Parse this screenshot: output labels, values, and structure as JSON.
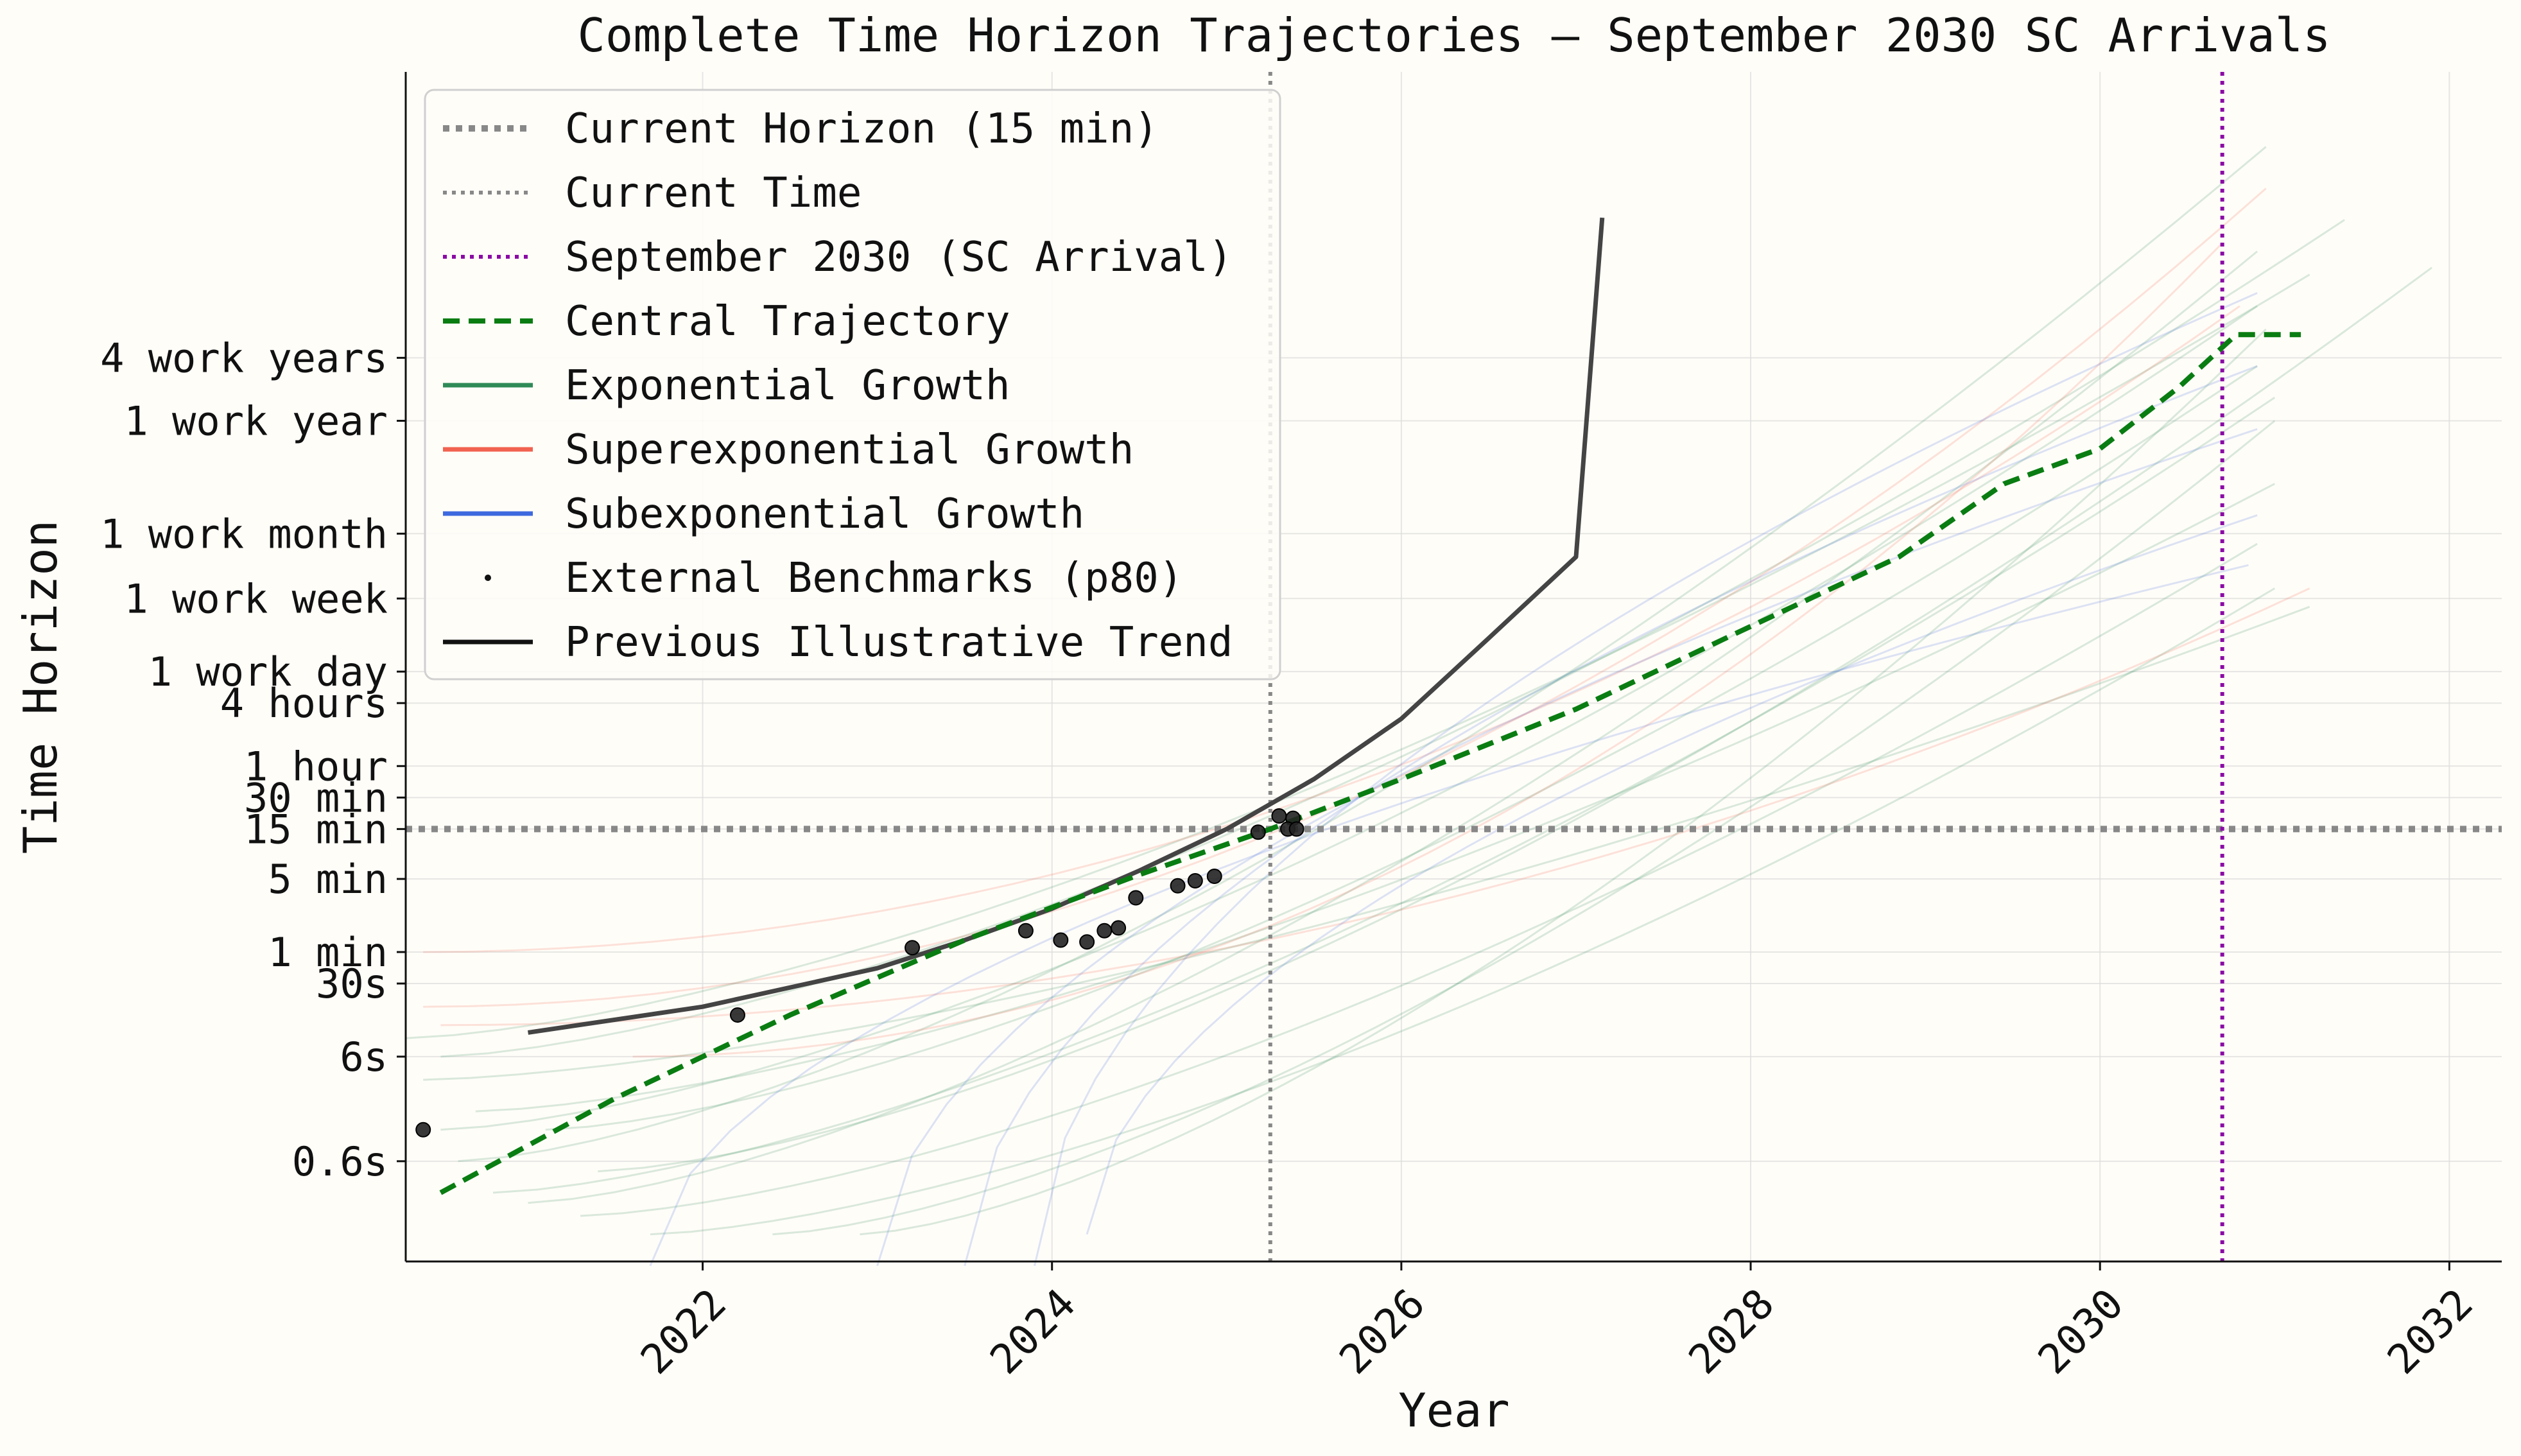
{
  "chart_data": {
    "type": "line",
    "title": "Complete Time Horizon Trajectories — September 2030 SC Arrivals",
    "xlabel": "Year",
    "ylabel": "Time Horizon",
    "xlim": [
      2020.3,
      2032.3
    ],
    "xscale": "linear",
    "yscale": "log",
    "y_units": "minutes",
    "ylim": [
      0.0011,
      260000000.0
    ],
    "xticks": [
      2022,
      2024,
      2026,
      2028,
      2030,
      2032
    ],
    "yticks": [
      {
        "label": "0.6s",
        "value": 0.01
      },
      {
        "label": "6s",
        "value": 0.1
      },
      {
        "label": "30s",
        "value": 0.5
      },
      {
        "label": "1 min",
        "value": 1
      },
      {
        "label": "5 min",
        "value": 5
      },
      {
        "label": "15 min",
        "value": 15
      },
      {
        "label": "30 min",
        "value": 30
      },
      {
        "label": "1 hour",
        "value": 60
      },
      {
        "label": "4 hours",
        "value": 240
      },
      {
        "label": "1 work day",
        "value": 480
      },
      {
        "label": "1 work week",
        "value": 2400
      },
      {
        "label": "1 work month",
        "value": 10000
      },
      {
        "label": "1 work year",
        "value": 120000
      },
      {
        "label": "4 work years",
        "value": 480000
      }
    ],
    "grid": true,
    "legend_position": "upper-left",
    "reference_lines": {
      "current_horizon_min": 15,
      "current_time": 2025.25,
      "sc_arrival": 2030.7
    },
    "colors": {
      "central": "#0a7d12",
      "exponential": "#2e8b57",
      "superexponential": "#f16250",
      "subexponential": "#3e6ae0",
      "previous_trend": "#444444",
      "benchmark": "#222222",
      "reference_gray": "#888888",
      "sc_purple": "#8b0aa5",
      "background": "#fffdf8"
    },
    "legend": [
      {
        "label": "Current Horizon (15 min)",
        "key": "current_horizon",
        "style": "thick-dotted",
        "color": "#888888"
      },
      {
        "label": "Current Time",
        "key": "current_time",
        "style": "dotted",
        "color": "#888888"
      },
      {
        "label": "September 2030 (SC Arrival)",
        "key": "sc_arrival",
        "style": "dotted",
        "color": "#8b0aa5"
      },
      {
        "label": "Central Trajectory",
        "key": "central",
        "style": "dashed",
        "color": "#0a7d12"
      },
      {
        "label": "Exponential Growth",
        "key": "exponential",
        "style": "solid",
        "color": "#2e8b57"
      },
      {
        "label": "Superexponential Growth",
        "key": "superexponential",
        "style": "solid",
        "color": "#f16250"
      },
      {
        "label": "Subexponential Growth",
        "key": "subexponential",
        "style": "solid",
        "color": "#3e6ae0"
      },
      {
        "label": "External Benchmarks (p80)",
        "key": "benchmarks",
        "style": "dot",
        "color": "#111111"
      },
      {
        "label": "Previous Illustrative Trend",
        "key": "previous_trend",
        "style": "solid",
        "color": "#111111"
      }
    ],
    "series": [
      {
        "name": "Central Trajectory",
        "points": [
          [
            2020.5,
            0.005
          ],
          [
            2021.5,
            0.04
          ],
          [
            2022.5,
            0.25
          ],
          [
            2023.5,
            1.3
          ],
          [
            2024.5,
            5.5
          ],
          [
            2025.25,
            15
          ],
          [
            2026,
            45
          ],
          [
            2027,
            210
          ],
          [
            2028,
            1300
          ],
          [
            2028.85,
            6000
          ],
          [
            2029.45,
            30000
          ],
          [
            2030,
            65000
          ],
          [
            2030.45,
            250000
          ],
          [
            2030.78,
            800000
          ],
          [
            2031.15,
            800000
          ]
        ]
      },
      {
        "name": "Previous Illustrative Trend",
        "points": [
          [
            2021.0,
            0.17
          ],
          [
            2022,
            0.3
          ],
          [
            2023,
            0.7
          ],
          [
            2023.5,
            1.3
          ],
          [
            2024,
            2.6
          ],
          [
            2024.5,
            6
          ],
          [
            2025,
            15
          ],
          [
            2025.5,
            45
          ],
          [
            2026,
            170
          ],
          [
            2026.5,
            1000
          ],
          [
            2027,
            6000
          ],
          [
            2027.15,
            10500000
          ]
        ]
      }
    ],
    "benchmarks": [
      [
        2020.4,
        0.02
      ],
      [
        2022.2,
        0.25
      ],
      [
        2023.2,
        1.1
      ],
      [
        2023.85,
        1.6
      ],
      [
        2024.05,
        1.3
      ],
      [
        2024.2,
        1.25
      ],
      [
        2024.3,
        1.6
      ],
      [
        2024.38,
        1.7
      ],
      [
        2024.48,
        3.3
      ],
      [
        2024.72,
        4.3
      ],
      [
        2024.82,
        4.8
      ],
      [
        2024.93,
        5.3
      ],
      [
        2025.18,
        14
      ],
      [
        2025.3,
        20
      ],
      [
        2025.38,
        19
      ],
      [
        2025.35,
        15
      ],
      [
        2025.4,
        15
      ]
    ],
    "trajectories": [
      {
        "type": "exponential",
        "start": [
          2020.3,
          0.15
        ],
        "end": [
          2031.2,
          3000000
        ]
      },
      {
        "type": "exponential",
        "start": [
          2020.5,
          0.02
        ],
        "end": [
          2030.9,
          1500000
        ]
      },
      {
        "type": "exponential",
        "start": [
          2020.6,
          0.01
        ],
        "end": [
          2030.95,
          50000000
        ]
      },
      {
        "type": "exponential",
        "start": [
          2020.8,
          0.005
        ],
        "end": [
          2031.0,
          200000
        ]
      },
      {
        "type": "exponential",
        "start": [
          2021.0,
          0.004
        ],
        "end": [
          2030.9,
          5000000
        ]
      },
      {
        "type": "exponential",
        "start": [
          2021.3,
          0.003
        ],
        "end": [
          2030.9,
          8000
        ]
      },
      {
        "type": "exponential",
        "start": [
          2021.7,
          0.002
        ],
        "end": [
          2031.0,
          3000
        ]
      },
      {
        "type": "exponential",
        "start": [
          2022.4,
          0.002
        ],
        "end": [
          2031.0,
          120000
        ]
      },
      {
        "type": "exponential",
        "start": [
          2022.9,
          0.002
        ],
        "end": [
          2030.95,
          900000
        ]
      },
      {
        "type": "exponential",
        "start": [
          2020.4,
          0.06
        ],
        "end": [
          2031.2,
          2000
        ]
      },
      {
        "type": "exponential",
        "start": [
          2020.7,
          0.03
        ],
        "end": [
          2031.0,
          30000
        ]
      },
      {
        "type": "exponential",
        "start": [
          2021.4,
          0.008
        ],
        "end": [
          2031.9,
          3500000
        ]
      },
      {
        "type": "exponential",
        "start": [
          2020.5,
          0.1
        ],
        "end": [
          2031.4,
          10000000
        ]
      },
      {
        "type": "exponential",
        "start": [
          2021.1,
          0.02
        ],
        "end": [
          2030.9,
          400000
        ]
      },
      {
        "type": "superexponential",
        "start": [
          2020.4,
          1.0
        ],
        "end": [
          2030.8,
          1500000
        ]
      },
      {
        "type": "superexponential",
        "start": [
          2020.4,
          0.3
        ],
        "end": [
          2030.95,
          20000000
        ]
      },
      {
        "type": "superexponential",
        "start": [
          2020.5,
          0.2
        ],
        "end": [
          2031.2,
          3000
        ]
      },
      {
        "type": "superexponential",
        "start": [
          2021.6,
          0.1
        ],
        "end": [
          2030.7,
          6000000
        ]
      },
      {
        "type": "subexponential",
        "start": [
          2023.0,
          0.001
        ],
        "end": [
          2030.9,
          100000
        ]
      },
      {
        "type": "subexponential",
        "start": [
          2023.5,
          0.001
        ],
        "end": [
          2030.9,
          400000
        ]
      },
      {
        "type": "subexponential",
        "start": [
          2023.9,
          0.001
        ],
        "end": [
          2030.9,
          2000000
        ]
      },
      {
        "type": "subexponential",
        "start": [
          2021.7,
          0.001
        ],
        "end": [
          2030.85,
          5000
        ]
      },
      {
        "type": "subexponential",
        "start": [
          2024.2,
          0.002
        ],
        "end": [
          2030.9,
          15000
        ]
      }
    ]
  }
}
